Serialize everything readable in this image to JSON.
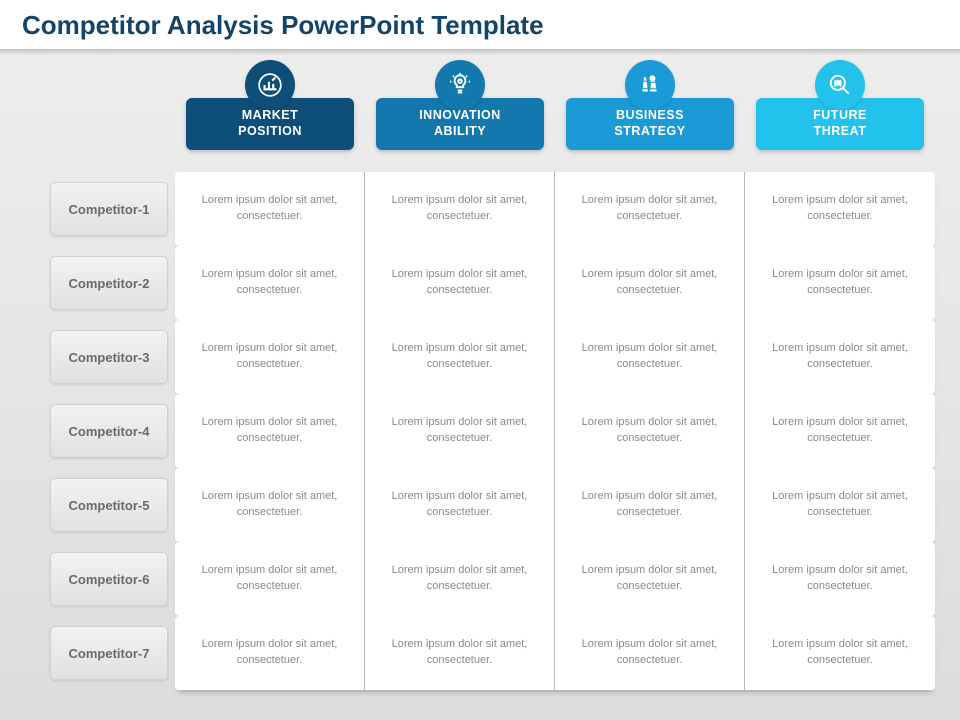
{
  "title": "Competitor Analysis PowerPoint Template",
  "layout": {
    "background_gradient": [
      "#eeeeee",
      "#dcdcdc"
    ],
    "title_color": "#14446a",
    "cell_text_color": "#8a8a8a",
    "row_label_color": "#6a6a6a",
    "column_count": 4,
    "row_count": 7,
    "cell_divider_color": "#b8b8b8"
  },
  "columns": [
    {
      "label": "MARKET\nPOSITION",
      "color": "#0d4f78",
      "icon": "bar-chart-icon"
    },
    {
      "label": "INNOVATION\nABILITY",
      "color": "#1378ad",
      "icon": "lightbulb-icon"
    },
    {
      "label": "BUSINESS\nSTRATEGY",
      "color": "#1a9bd7",
      "icon": "chess-icon"
    },
    {
      "label": "FUTURE\nTHREAT",
      "color": "#23c2ec",
      "icon": "magnifier-bug-icon"
    }
  ],
  "rows": [
    {
      "label": "Competitor-1"
    },
    {
      "label": "Competitor-2"
    },
    {
      "label": "Competitor-3"
    },
    {
      "label": "Competitor-4"
    },
    {
      "label": "Competitor-5"
    },
    {
      "label": "Competitor-6"
    },
    {
      "label": "Competitor-7"
    }
  ],
  "cell_text": "Lorem ipsum dolor sit amet, consectetuer."
}
